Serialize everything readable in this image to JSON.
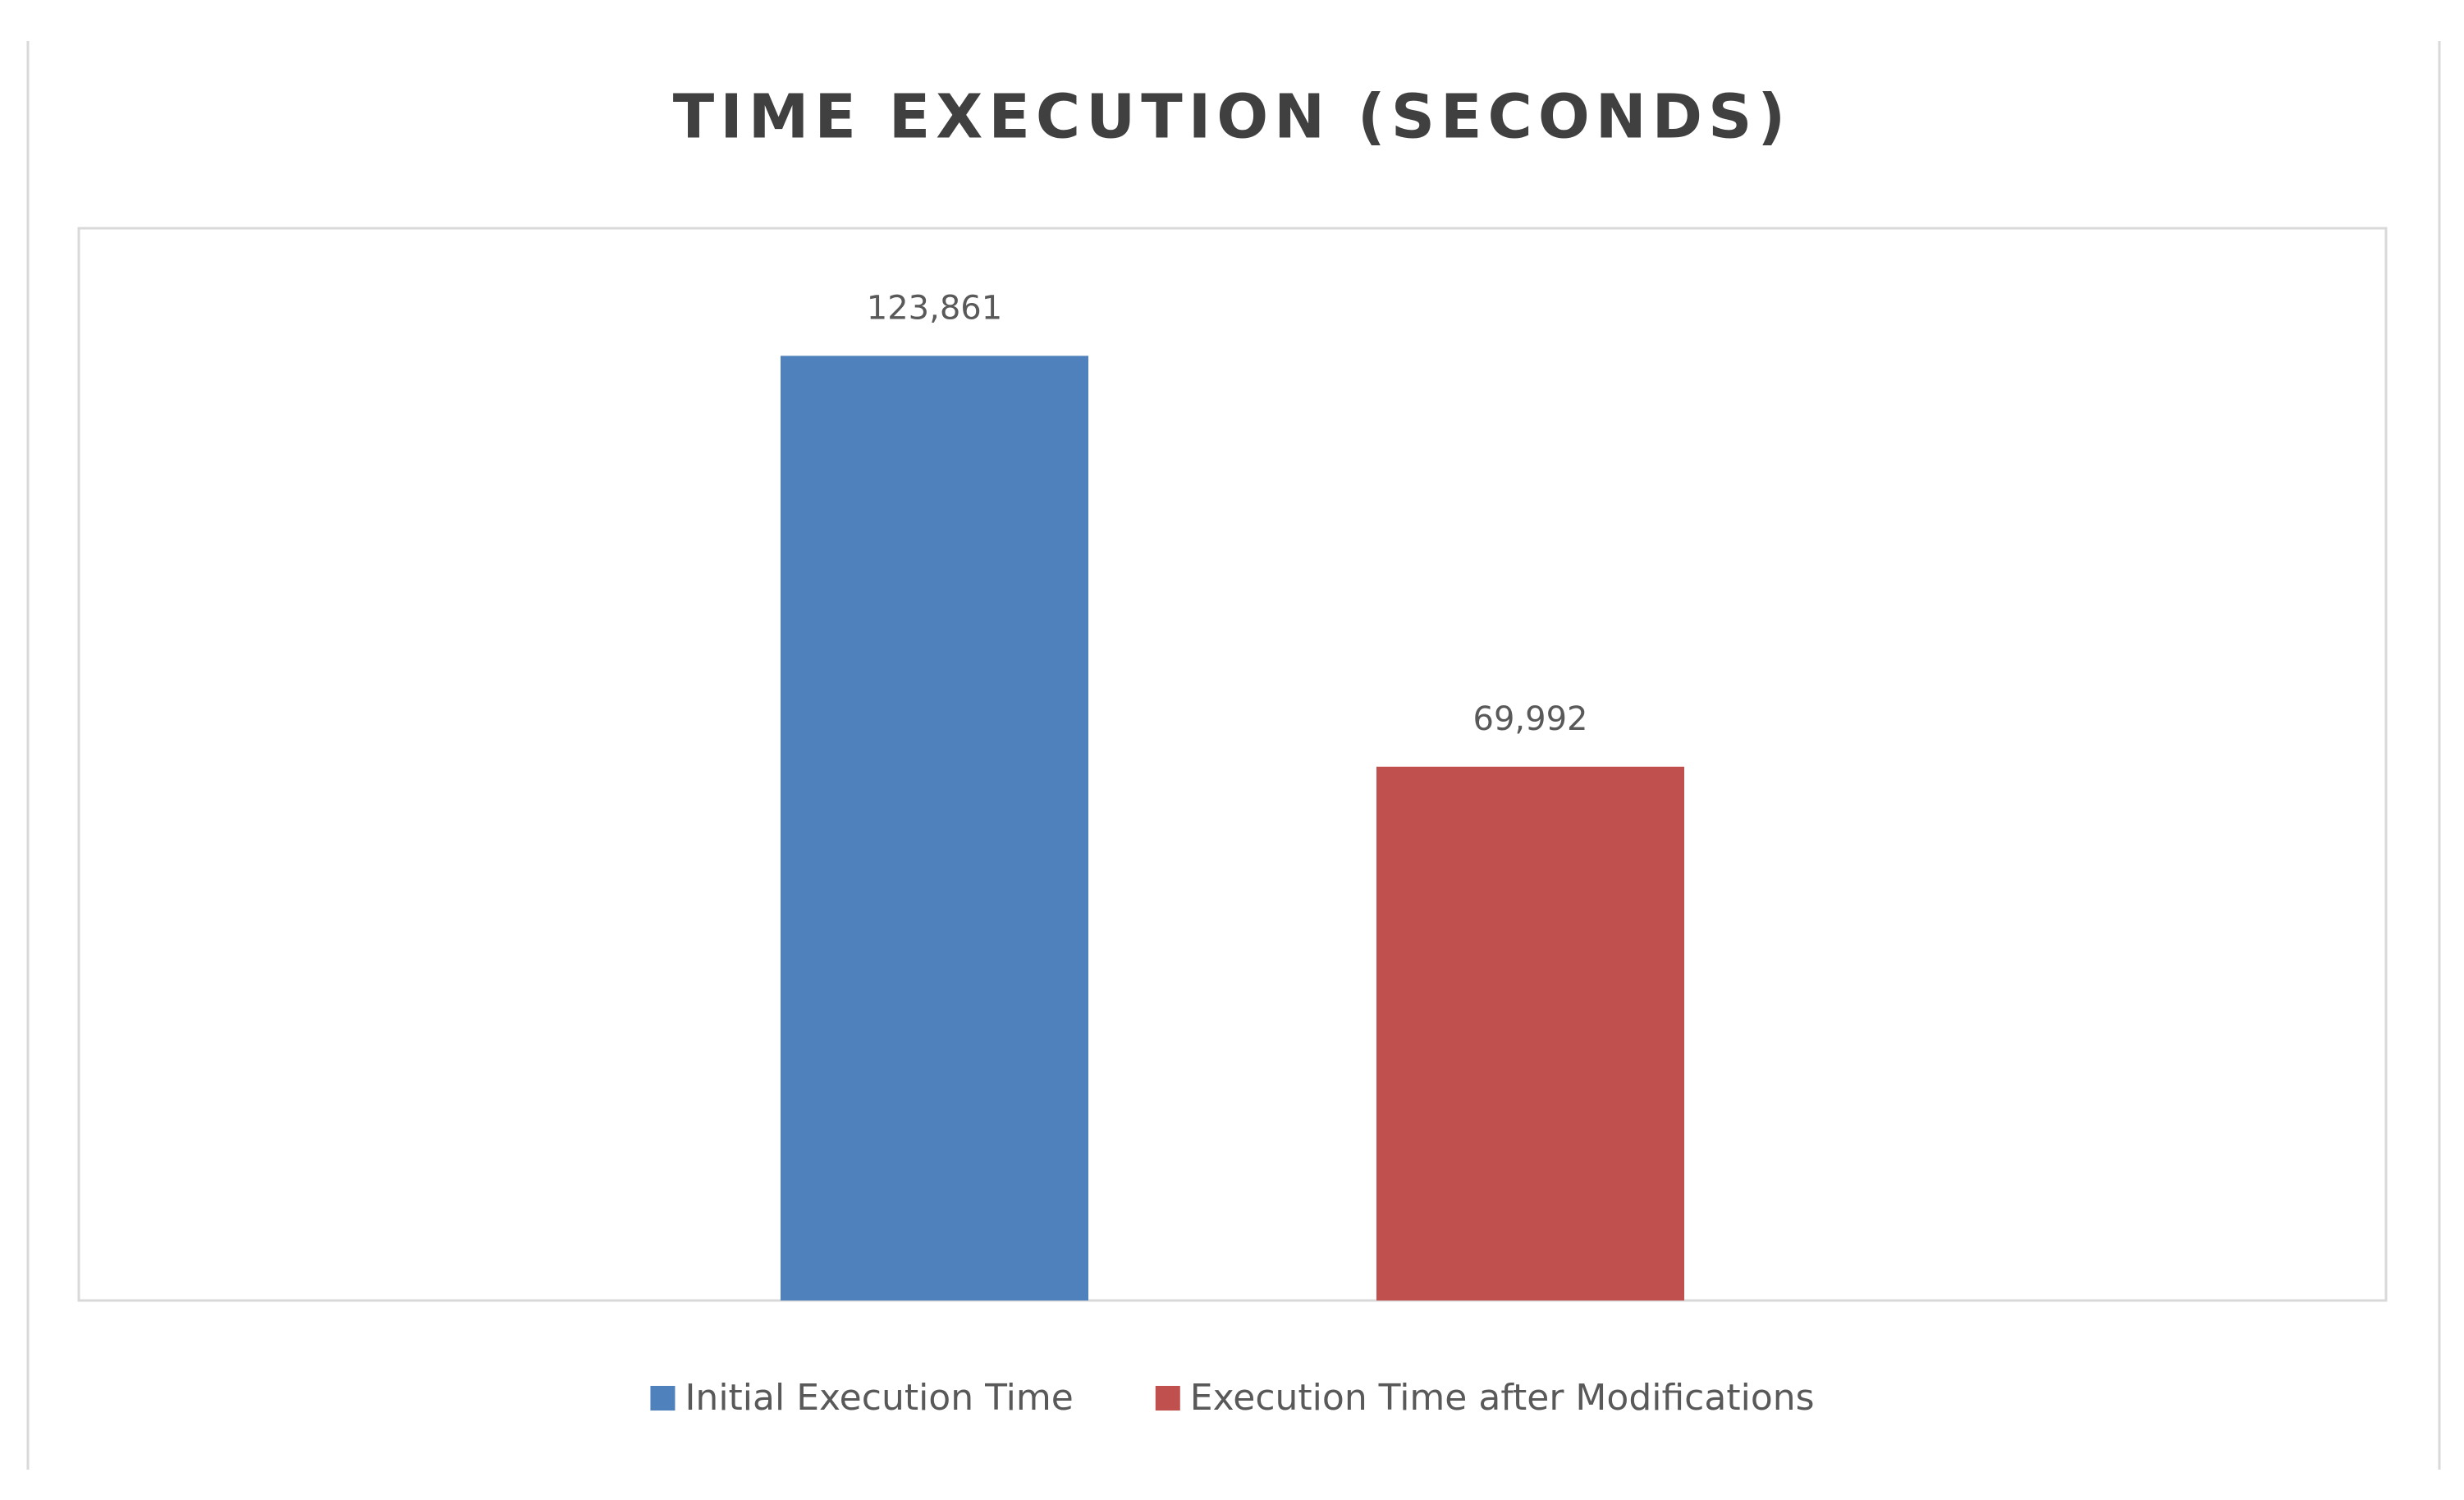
{
  "chart_data": {
    "type": "bar",
    "title": "TIME EXECUTION (SECONDS)",
    "categories": [
      null
    ],
    "series": [
      {
        "name": "Initial Execution Time",
        "color": "#4f81bd",
        "values": [
          123.861
        ],
        "value_labels": [
          "123,861"
        ]
      },
      {
        "name": "Execution Time after Modifications",
        "color": "#c0504d",
        "values": [
          69.992
        ],
        "value_labels": [
          "69,992"
        ]
      }
    ],
    "legend": "bottom"
  }
}
